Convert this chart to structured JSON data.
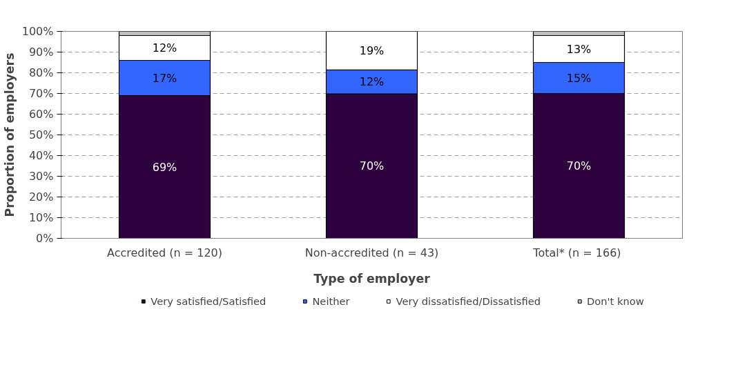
{
  "chart_data": {
    "type": "bar",
    "stacked": true,
    "xlabel": "Type of employer",
    "ylabel": "Proportion of employers",
    "categories": [
      "Accredited (n = 120)",
      "Non-accredited (n = 43)",
      "Total*  (n = 166)"
    ],
    "series": [
      {
        "name": "Very satisfied/Satisfied",
        "color": "#2e0340",
        "values": [
          69,
          69.8,
          70
        ],
        "value_labels": [
          "69%",
          "70%",
          "70%"
        ]
      },
      {
        "name": "Neither",
        "color": "#3366ff",
        "values": [
          17,
          11.6,
          15
        ],
        "value_labels": [
          "17%",
          "12%",
          "15%"
        ]
      },
      {
        "name": "Very dissatisfied/Dissatisfied",
        "color": "#ffffff",
        "values": [
          12,
          18.6,
          13
        ],
        "value_labels": [
          "12%",
          "19%",
          "13%"
        ]
      },
      {
        "name": "Don't know",
        "color": "#c0c0c0",
        "values": [
          2,
          0,
          2
        ],
        "value_labels": [
          null,
          null,
          null
        ]
      }
    ],
    "ylim": [
      0,
      100
    ],
    "yticks": [
      {
        "value": 0,
        "label": "0%"
      },
      {
        "value": 10,
        "label": "10%"
      },
      {
        "value": 20,
        "label": "20%"
      },
      {
        "value": 30,
        "label": "30%"
      },
      {
        "value": 40,
        "label": "40%"
      },
      {
        "value": 50,
        "label": "50%"
      },
      {
        "value": 60,
        "label": "60%"
      },
      {
        "value": 70,
        "label": "70%"
      },
      {
        "value": 80,
        "label": "80%"
      },
      {
        "value": 90,
        "label": "90%"
      },
      {
        "value": 100,
        "label": "100%"
      }
    ],
    "grid": "y",
    "legend": "bottom"
  }
}
